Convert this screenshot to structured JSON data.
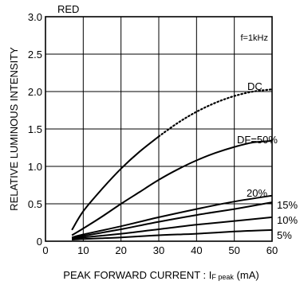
{
  "chart_data": {
    "type": "line",
    "title": "RED",
    "annotation": "f=1kHz",
    "xlabel": "PEAK FORWARD CURRENT : I",
    "xlabel_sub": "F peak",
    "xlabel_unit": " (mA)",
    "ylabel": "RELATIVE LUMINOUS INTENSITY",
    "xlim": [
      0,
      60
    ],
    "ylim": [
      0,
      3.0
    ],
    "x_ticks": [
      0,
      10,
      20,
      30,
      40,
      50,
      60
    ],
    "y_ticks": [
      "0",
      "0.5",
      "1.0",
      "1.5",
      "2.0",
      "2.5",
      "3.0"
    ],
    "y_tick_values": [
      0,
      0.5,
      1.0,
      1.5,
      2.0,
      2.5,
      3.0
    ],
    "grid": true,
    "series": [
      {
        "name": "DC",
        "x": [
          7,
          10,
          15,
          20,
          25,
          30,
          35,
          40,
          45,
          50,
          55,
          60
        ],
        "y": [
          0.15,
          0.4,
          0.7,
          0.97,
          1.2,
          1.4,
          1.58,
          1.73,
          1.85,
          1.94,
          2.0,
          2.03
        ],
        "dotted_from_x": 30
      },
      {
        "name": "DF=50%",
        "x": [
          7,
          10,
          15,
          20,
          25,
          30,
          35,
          40,
          45,
          50,
          55,
          60
        ],
        "y": [
          0.08,
          0.17,
          0.33,
          0.5,
          0.66,
          0.82,
          0.96,
          1.08,
          1.18,
          1.26,
          1.32,
          1.34
        ]
      },
      {
        "name": "20%",
        "x": [
          7,
          10,
          20,
          30,
          40,
          50,
          60
        ],
        "y": [
          0.05,
          0.09,
          0.2,
          0.32,
          0.43,
          0.53,
          0.61
        ]
      },
      {
        "name": "15%",
        "x": [
          7,
          10,
          20,
          30,
          40,
          50,
          60
        ],
        "y": [
          0.04,
          0.07,
          0.16,
          0.26,
          0.35,
          0.43,
          0.52
        ]
      },
      {
        "name": "10%",
        "x": [
          7,
          10,
          20,
          30,
          40,
          50,
          60
        ],
        "y": [
          0.03,
          0.05,
          0.1,
          0.16,
          0.22,
          0.27,
          0.32
        ]
      },
      {
        "name": "5%",
        "x": [
          7,
          10,
          20,
          30,
          40,
          50,
          60
        ],
        "y": [
          0.02,
          0.03,
          0.05,
          0.08,
          0.1,
          0.13,
          0.15
        ]
      }
    ],
    "series_labels": [
      "DC",
      "DF=50%",
      "20%",
      "15%",
      "10%",
      "5%"
    ]
  }
}
